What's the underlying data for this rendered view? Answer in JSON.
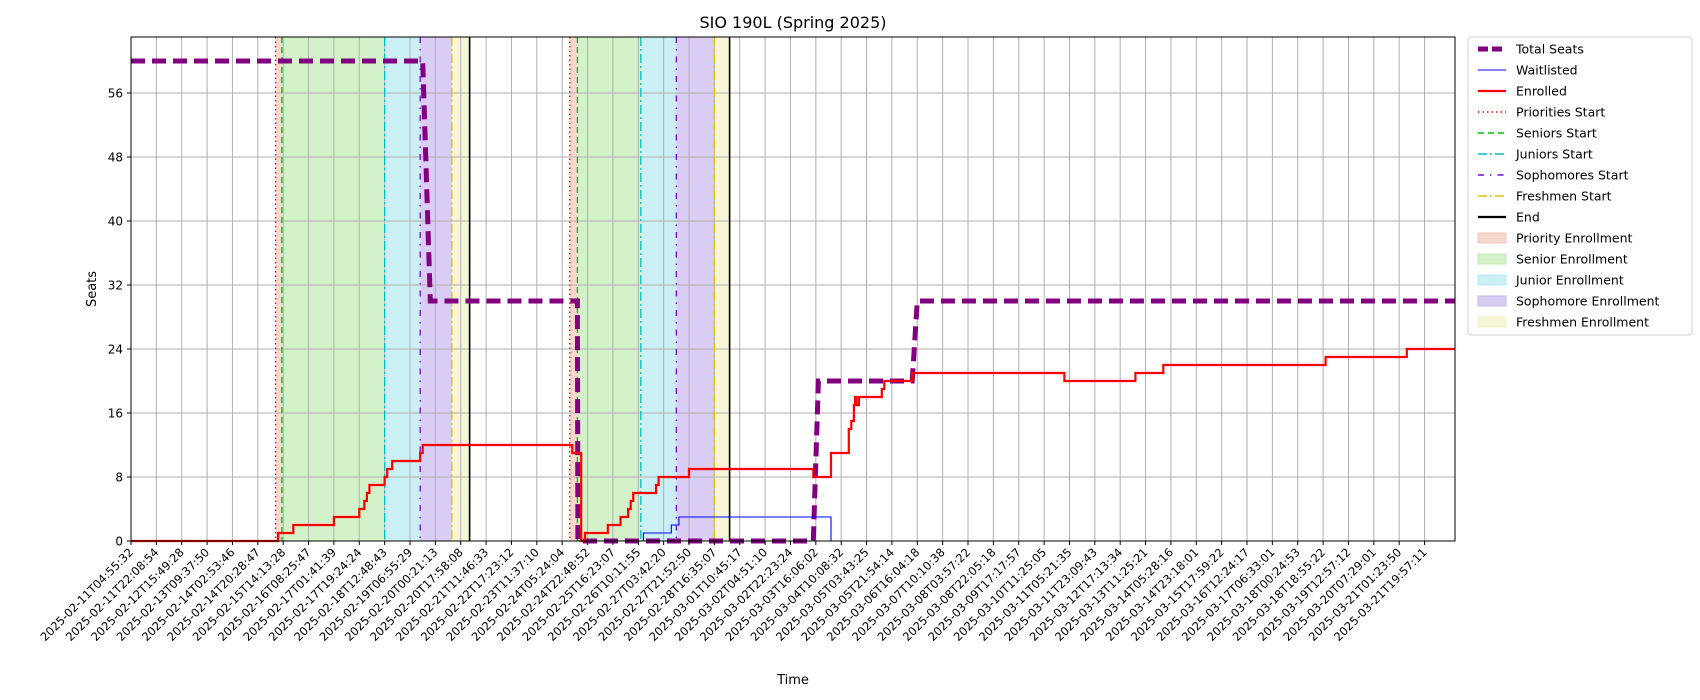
{
  "chart_data": {
    "type": "line",
    "title": "SIO 190L (Spring 2025)",
    "xlabel": "Time",
    "ylabel": "Seats",
    "ylim": [
      0,
      63
    ],
    "yticks": [
      0,
      8,
      16,
      24,
      32,
      40,
      48,
      56
    ],
    "grid": true,
    "legend_placement": "outside-right",
    "x_tick_labels": [
      "2025-02-11T04:55:32",
      "2025-02-11T22:08:54",
      "2025-02-12T15:49:28",
      "2025-02-13T09:37:50",
      "2025-02-14T02:53:46",
      "2025-02-14T20:28:47",
      "2025-02-15T14:13:28",
      "2025-02-16T08:25:47",
      "2025-02-17T01:41:39",
      "2025-02-17T19:24:24",
      "2025-02-18T12:48:43",
      "2025-02-19T06:55:29",
      "2025-02-20T00:21:13",
      "2025-02-20T17:58:08",
      "2025-02-21T11:46:33",
      "2025-02-22T17:23:12",
      "2025-02-23T11:37:10",
      "2025-02-24T05:24:04",
      "2025-02-24T22:48:52",
      "2025-02-25T16:23:07",
      "2025-02-26T10:11:55",
      "2025-02-27T03:42:20",
      "2025-02-27T21:52:50",
      "2025-02-28T16:35:07",
      "2025-03-01T10:45:17",
      "2025-03-02T04:51:10",
      "2025-03-02T22:23:24",
      "2025-03-03T16:06:02",
      "2025-03-04T10:08:32",
      "2025-03-05T03:43:25",
      "2025-03-05T21:54:14",
      "2025-03-06T16:04:18",
      "2025-03-07T10:10:38",
      "2025-03-08T03:57:22",
      "2025-03-08T22:05:18",
      "2025-03-09T17:17:57",
      "2025-03-10T11:25:05",
      "2025-03-11T05:21:35",
      "2025-03-11T23:09:43",
      "2025-03-12T17:13:34",
      "2025-03-13T11:25:21",
      "2025-03-14T05:28:16",
      "2025-03-14T23:18:01",
      "2025-03-15T17:59:22",
      "2025-03-16T12:24:17",
      "2025-03-17T06:33:01",
      "2025-03-18T00:24:53",
      "2025-03-18T18:55:22",
      "2025-03-19T12:57:12",
      "2025-03-20T07:29:01",
      "2025-03-21T01:23:50",
      "2025-03-21T19:57:11"
    ],
    "series": [
      {
        "name": "Total Seats",
        "color": "#800080",
        "style": "dashed-thick",
        "points": [
          [
            0,
            60
          ],
          [
            11.5,
            60
          ],
          [
            11.8,
            30
          ],
          [
            17.6,
            30
          ],
          [
            17.62,
            0
          ],
          [
            26.9,
            0
          ],
          [
            27.1,
            20
          ],
          [
            30.8,
            20
          ],
          [
            31,
            30
          ],
          [
            52.2,
            30
          ]
        ]
      },
      {
        "name": "Waitlisted",
        "color": "#0000ff",
        "style": "solid-thin",
        "points": [
          [
            0,
            0
          ],
          [
            20.2,
            0
          ],
          [
            20.2,
            1
          ],
          [
            21.3,
            1
          ],
          [
            21.3,
            2
          ],
          [
            21.6,
            2
          ],
          [
            21.6,
            3
          ],
          [
            27.6,
            3
          ],
          [
            27.6,
            0
          ],
          [
            52.2,
            0
          ]
        ]
      },
      {
        "name": "Enrolled",
        "color": "#ff0000",
        "style": "solid",
        "points": [
          [
            0,
            0
          ],
          [
            5.8,
            0
          ],
          [
            5.8,
            1
          ],
          [
            6.4,
            1
          ],
          [
            6.4,
            2
          ],
          [
            8,
            2
          ],
          [
            8,
            3
          ],
          [
            9,
            3
          ],
          [
            9,
            4
          ],
          [
            9.2,
            4
          ],
          [
            9.2,
            5
          ],
          [
            9.3,
            5
          ],
          [
            9.3,
            6
          ],
          [
            9.4,
            6
          ],
          [
            9.4,
            7
          ],
          [
            10,
            7
          ],
          [
            10,
            8
          ],
          [
            10.1,
            8
          ],
          [
            10.1,
            9
          ],
          [
            10.3,
            9
          ],
          [
            10.3,
            10
          ],
          [
            11.4,
            10
          ],
          [
            11.4,
            11
          ],
          [
            11.5,
            11
          ],
          [
            11.5,
            12
          ],
          [
            17.4,
            12
          ],
          [
            17.4,
            11
          ],
          [
            17.75,
            11
          ],
          [
            17.75,
            0
          ],
          [
            17.9,
            0
          ],
          [
            17.9,
            1
          ],
          [
            18.8,
            1
          ],
          [
            18.8,
            2
          ],
          [
            19.3,
            2
          ],
          [
            19.3,
            3
          ],
          [
            19.6,
            3
          ],
          [
            19.6,
            4
          ],
          [
            19.7,
            4
          ],
          [
            19.7,
            5
          ],
          [
            19.8,
            5
          ],
          [
            19.8,
            6
          ],
          [
            20.7,
            6
          ],
          [
            20.7,
            7
          ],
          [
            20.8,
            7
          ],
          [
            20.8,
            8
          ],
          [
            22,
            8
          ],
          [
            22,
            9
          ],
          [
            26.9,
            9
          ],
          [
            26.9,
            8
          ],
          [
            27.6,
            8
          ],
          [
            27.6,
            11
          ],
          [
            28.3,
            11
          ],
          [
            28.3,
            14
          ],
          [
            28.4,
            14
          ],
          [
            28.4,
            15
          ],
          [
            28.5,
            15
          ],
          [
            28.5,
            17
          ],
          [
            28.55,
            17
          ],
          [
            28.55,
            18
          ],
          [
            28.6,
            18
          ],
          [
            28.6,
            17
          ],
          [
            28.7,
            17
          ],
          [
            28.7,
            18
          ],
          [
            29.6,
            18
          ],
          [
            29.6,
            19
          ],
          [
            29.7,
            19
          ],
          [
            29.7,
            20
          ],
          [
            30.8,
            20
          ],
          [
            30.8,
            21
          ],
          [
            36.8,
            21
          ],
          [
            36.8,
            20
          ],
          [
            39.6,
            20
          ],
          [
            39.6,
            21
          ],
          [
            40.7,
            21
          ],
          [
            40.7,
            22
          ],
          [
            47.1,
            22
          ],
          [
            47.1,
            23
          ],
          [
            50.3,
            23
          ],
          [
            50.3,
            24
          ],
          [
            52.2,
            24
          ]
        ]
      }
    ],
    "vertical_lines": [
      {
        "name": "Priorities Start",
        "color": "#ff0000",
        "style": "dotted",
        "x": [
          5.7,
          17.3
        ]
      },
      {
        "name": "Seniors Start",
        "color": "#00c000",
        "style": "dashed",
        "x": [
          5.95,
          17.6
        ]
      },
      {
        "name": "Juniors Start",
        "color": "#00bfbf",
        "style": "dashdot",
        "x": [
          10,
          20.1
        ]
      },
      {
        "name": "Sophomores Start",
        "color": "#6a0dd8",
        "style": "dashdotsparse",
        "x": [
          11.4,
          21.5
        ]
      },
      {
        "name": "Freshmen Start",
        "color": "#e5c200",
        "style": "dashdot",
        "x": [
          12.65,
          23
        ]
      },
      {
        "name": "End",
        "color": "#000000",
        "style": "solid",
        "x": [
          13.35,
          23.6
        ]
      }
    ],
    "shaded_regions": [
      {
        "name": "Priority Enrollment",
        "color": "#f4c7b8",
        "spans": [
          [
            5.7,
            5.95
          ],
          [
            17.3,
            17.6
          ]
        ]
      },
      {
        "name": "Senior Enrollment",
        "color": "#c2ecb2",
        "spans": [
          [
            5.95,
            10
          ],
          [
            17.6,
            20.1
          ]
        ]
      },
      {
        "name": "Junior Enrollment",
        "color": "#b4e8ef",
        "spans": [
          [
            10,
            11.4
          ],
          [
            20.1,
            21.5
          ]
        ]
      },
      {
        "name": "Sophomore Enrollment",
        "color": "#cbb8f0",
        "spans": [
          [
            11.4,
            12.65
          ],
          [
            21.5,
            23
          ]
        ]
      },
      {
        "name": "Freshmen Enrollment",
        "color": "#f4f2c4",
        "spans": [
          [
            12.65,
            13.35
          ],
          [
            23,
            23.6
          ]
        ]
      }
    ],
    "legend": [
      {
        "label": "Total Seats",
        "kind": "line",
        "color": "#800080",
        "style": "dashed-thick"
      },
      {
        "label": "Waitlisted",
        "kind": "line",
        "color": "#0000ff",
        "style": "solid-thin"
      },
      {
        "label": "Enrolled",
        "kind": "line",
        "color": "#ff0000",
        "style": "solid"
      },
      {
        "label": "Priorities Start",
        "kind": "line",
        "color": "#ff0000",
        "style": "dotted"
      },
      {
        "label": "Seniors Start",
        "kind": "line",
        "color": "#00c000",
        "style": "dashed"
      },
      {
        "label": "Juniors Start",
        "kind": "line",
        "color": "#00bfbf",
        "style": "dashdot"
      },
      {
        "label": "Sophomores Start",
        "kind": "line",
        "color": "#6a0dd8",
        "style": "dashdotsparse"
      },
      {
        "label": "Freshmen Start",
        "kind": "line",
        "color": "#e5c200",
        "style": "dashdot"
      },
      {
        "label": "End",
        "kind": "line",
        "color": "#000000",
        "style": "solid"
      },
      {
        "label": "Priority Enrollment",
        "kind": "patch",
        "color": "#f4c7b8"
      },
      {
        "label": "Senior Enrollment",
        "kind": "patch",
        "color": "#c2ecb2"
      },
      {
        "label": "Junior Enrollment",
        "kind": "patch",
        "color": "#b4e8ef"
      },
      {
        "label": "Sophomore Enrollment",
        "kind": "patch",
        "color": "#cbb8f0"
      },
      {
        "label": "Freshmen Enrollment",
        "kind": "patch",
        "color": "#f4f2c4"
      }
    ]
  }
}
